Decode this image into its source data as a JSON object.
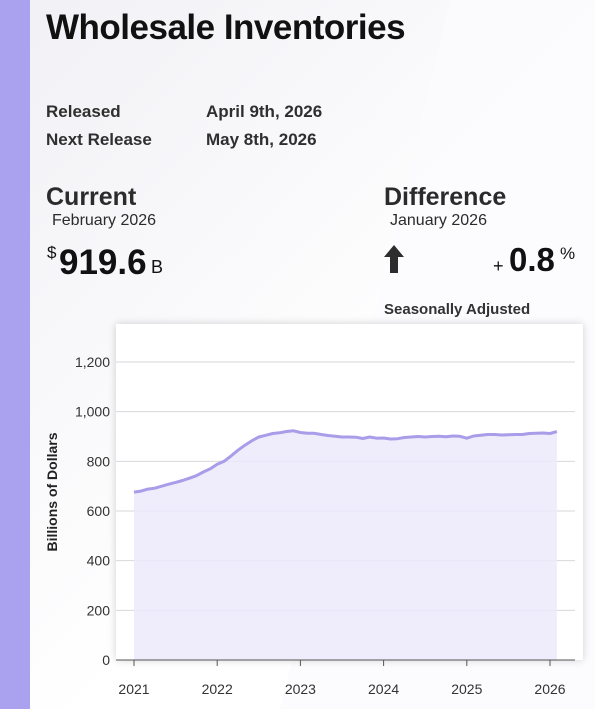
{
  "title": "Wholesale Inventories",
  "release": {
    "released_label": "Released",
    "released_date": "April 9th, 2026",
    "next_label": "Next Release",
    "next_date": "May 8th, 2026"
  },
  "current": {
    "label": "Current",
    "period": "February 2026",
    "currency": "$",
    "value": "919.6",
    "unit": "B"
  },
  "difference": {
    "label": "Difference",
    "period": "January 2026",
    "direction_icon": "arrow-up-icon",
    "sign": "+",
    "value": "0.8",
    "unit": "%"
  },
  "adjustment": "Seasonally Adjusted",
  "colors": {
    "accent": "#aba2ef",
    "line": "#a99ce8",
    "fill": "#ece9fb"
  },
  "chart_data": {
    "type": "area",
    "title": "",
    "xlabel": "",
    "ylabel": "Billions of Dollars",
    "ylim": [
      0,
      1300
    ],
    "yticks": [
      0,
      200,
      400,
      600,
      800,
      1000,
      1200
    ],
    "ytick_labels": [
      "0",
      "200",
      "400",
      "600",
      "800",
      "1,000",
      "1,200"
    ],
    "xlim": [
      "2021-01",
      "2026-02"
    ],
    "xticks": [
      "2021-01",
      "2022-01",
      "2023-01",
      "2024-01",
      "2025-01",
      "2026-01"
    ],
    "xtick_labels": [
      "2021",
      "2022",
      "2023",
      "2024",
      "2025",
      "2026"
    ],
    "grid": true,
    "series": [
      {
        "name": "",
        "x": [
          "2021-01",
          "2021-02",
          "2021-03",
          "2021-04",
          "2021-05",
          "2021-06",
          "2021-07",
          "2021-08",
          "2021-09",
          "2021-10",
          "2021-11",
          "2021-12",
          "2022-01",
          "2022-02",
          "2022-03",
          "2022-04",
          "2022-05",
          "2022-06",
          "2022-07",
          "2022-08",
          "2022-09",
          "2022-10",
          "2022-11",
          "2022-12",
          "2023-01",
          "2023-02",
          "2023-03",
          "2023-04",
          "2023-05",
          "2023-06",
          "2023-07",
          "2023-08",
          "2023-09",
          "2023-10",
          "2023-11",
          "2023-12",
          "2024-01",
          "2024-02",
          "2024-03",
          "2024-04",
          "2024-05",
          "2024-06",
          "2024-07",
          "2024-08",
          "2024-09",
          "2024-10",
          "2024-11",
          "2024-12",
          "2025-01",
          "2025-02",
          "2025-03",
          "2025-04",
          "2025-05",
          "2025-06",
          "2025-07",
          "2025-08",
          "2025-09",
          "2025-10",
          "2025-11",
          "2025-12",
          "2026-01",
          "2026-02"
        ],
        "y": [
          676,
          680,
          688,
          692,
          700,
          708,
          715,
          723,
          732,
          742,
          757,
          770,
          788,
          800,
          822,
          845,
          865,
          883,
          898,
          905,
          912,
          915,
          920,
          923,
          916,
          913,
          913,
          908,
          904,
          901,
          898,
          898,
          897,
          892,
          898,
          893,
          894,
          890,
          891,
          896,
          898,
          900,
          898,
          900,
          901,
          899,
          902,
          901,
          893,
          902,
          905,
          908,
          908,
          906,
          907,
          908,
          908,
          912,
          913,
          914,
          912,
          919.6
        ]
      }
    ]
  }
}
